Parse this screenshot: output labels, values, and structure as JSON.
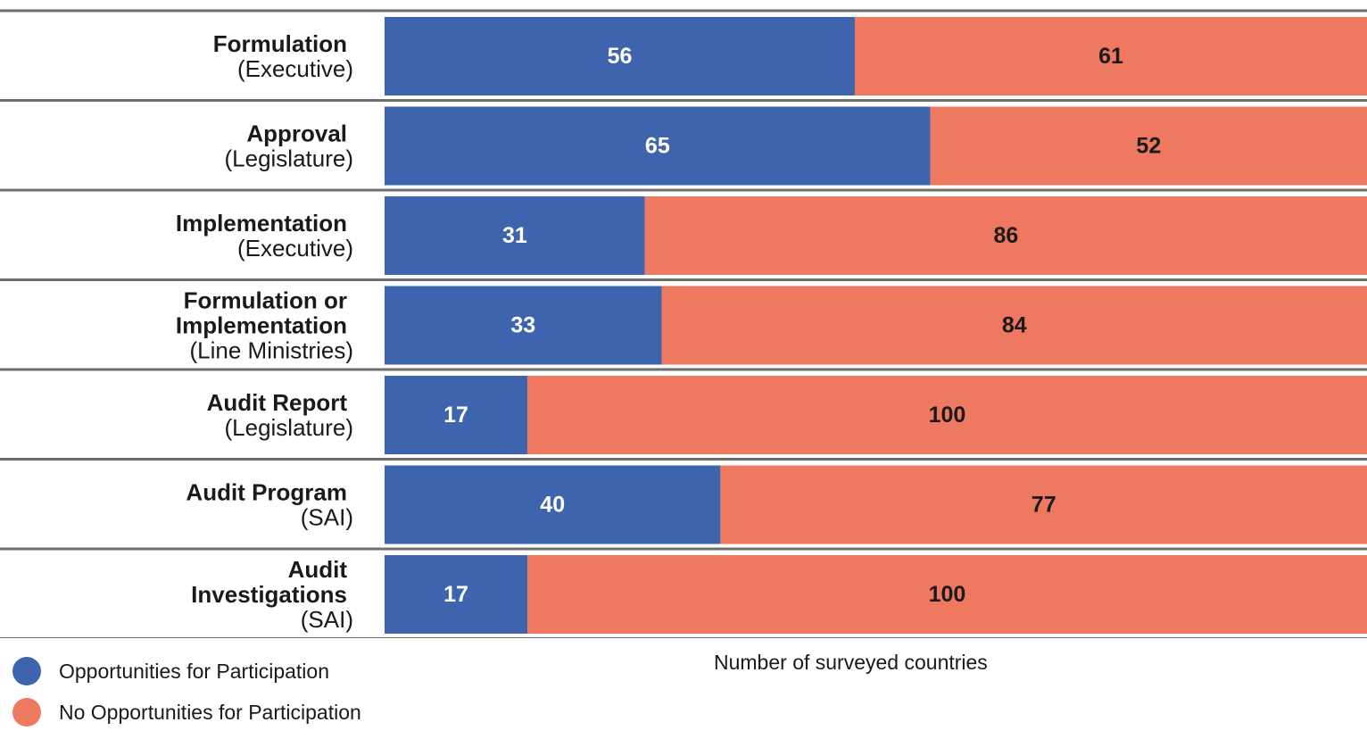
{
  "chart_data": {
    "type": "bar",
    "orientation": "horizontal",
    "stacked": true,
    "categories": [
      {
        "main": [
          "Formulation"
        ],
        "sub": "(Executive)"
      },
      {
        "main": [
          "Approval"
        ],
        "sub": "(Legislature)"
      },
      {
        "main": [
          "Implementation"
        ],
        "sub": "(Executive)"
      },
      {
        "main": [
          "Formulation or",
          "Implementation"
        ],
        "sub": "(Line Ministries)"
      },
      {
        "main": [
          "Audit Report"
        ],
        "sub": "(Legislature)"
      },
      {
        "main": [
          "Audit Program"
        ],
        "sub": "(SAI)"
      },
      {
        "main": [
          "Audit",
          "Investigations"
        ],
        "sub": "(SAI)"
      }
    ],
    "series": [
      {
        "name": "Opportunities for Participation",
        "color": "#3e64ad",
        "label_color": "#ffffff",
        "values": [
          56,
          65,
          31,
          33,
          17,
          40,
          17
        ]
      },
      {
        "name": "No Opportunities for Participation",
        "color": "#ee7960",
        "label_color": "#1a1a1a",
        "values": [
          61,
          52,
          86,
          84,
          100,
          77,
          100
        ]
      }
    ],
    "xlabel": "Number of surveyed countries",
    "xlim": [
      0,
      117
    ],
    "grid": false,
    "legend_position": "bottom-left"
  }
}
